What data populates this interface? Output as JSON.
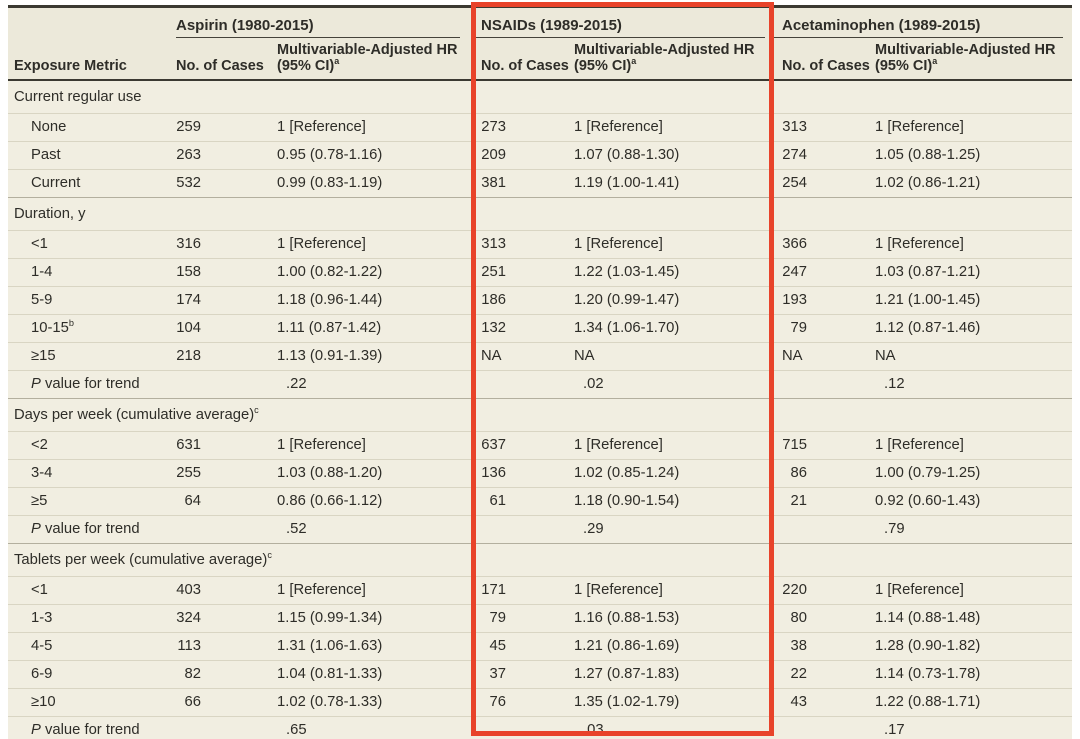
{
  "annotation": {
    "type": "highlight-box",
    "target": "NSAIDs column group",
    "color": "#e8432a"
  },
  "table": {
    "groups": [
      {
        "label": "Aspirin (1980-2015)"
      },
      {
        "label": "NSAIDs (1989-2015)"
      },
      {
        "label": "Acetaminophen (1989-2015)"
      }
    ],
    "col_headers": {
      "metric": "Exposure Metric",
      "cases": "No. of Cases",
      "hr_line1": "Multivariable-Adjusted HR",
      "hr_line2": "(95% CI)^a"
    },
    "p_label": {
      "italic": "P",
      "rest": " value for trend"
    },
    "sections": [
      {
        "label": "Current regular use",
        "rows": [
          {
            "metric": "None",
            "aspirin": {
              "cases": "259",
              "hr": "1 [Reference]"
            },
            "nsaids": {
              "cases": "273",
              "hr": "1 [Reference]"
            },
            "acetaminophen": {
              "cases": "313",
              "hr": "1 [Reference]"
            }
          },
          {
            "metric": "Past",
            "aspirin": {
              "cases": "263",
              "hr": "0.95 (0.78-1.16)"
            },
            "nsaids": {
              "cases": "209",
              "hr": "1.07 (0.88-1.30)"
            },
            "acetaminophen": {
              "cases": "274",
              "hr": "1.05 (0.88-1.25)"
            }
          },
          {
            "metric": "Current",
            "aspirin": {
              "cases": "532",
              "hr": "0.99 (0.83-1.19)"
            },
            "nsaids": {
              "cases": "381",
              "hr": "1.19 (1.00-1.41)"
            },
            "acetaminophen": {
              "cases": "254",
              "hr": "1.02 (0.86-1.21)"
            }
          }
        ],
        "p_trend": null
      },
      {
        "label": "Duration, y",
        "rows": [
          {
            "metric": "<1",
            "aspirin": {
              "cases": "316",
              "hr": "1 [Reference]"
            },
            "nsaids": {
              "cases": "313",
              "hr": "1 [Reference]"
            },
            "acetaminophen": {
              "cases": "366",
              "hr": "1 [Reference]"
            }
          },
          {
            "metric": "1-4",
            "aspirin": {
              "cases": "158",
              "hr": "1.00 (0.82-1.22)"
            },
            "nsaids": {
              "cases": "251",
              "hr": "1.22 (1.03-1.45)"
            },
            "acetaminophen": {
              "cases": "247",
              "hr": "1.03 (0.87-1.21)"
            }
          },
          {
            "metric": "5-9",
            "aspirin": {
              "cases": "174",
              "hr": "1.18 (0.96-1.44)"
            },
            "nsaids": {
              "cases": "186",
              "hr": "1.20 (0.99-1.47)"
            },
            "acetaminophen": {
              "cases": "193",
              "hr": "1.21 (1.00-1.45)"
            }
          },
          {
            "metric": "10-15^b",
            "aspirin": {
              "cases": "104",
              "hr": "1.11 (0.87-1.42)"
            },
            "nsaids": {
              "cases": "132",
              "hr": "1.34 (1.06-1.70)"
            },
            "acetaminophen": {
              "cases": "79",
              "hr": "1.12 (0.87-1.46)"
            }
          },
          {
            "metric": "≥15",
            "aspirin": {
              "cases": "218",
              "hr": "1.13 (0.91-1.39)"
            },
            "nsaids": {
              "cases": "NA",
              "hr": "NA"
            },
            "acetaminophen": {
              "cases": "NA",
              "hr": "NA"
            }
          }
        ],
        "p_trend": {
          "aspirin": ".22",
          "nsaids": ".02",
          "acetaminophen": ".12"
        }
      },
      {
        "label": "Days per week (cumulative average)^c",
        "rows": [
          {
            "metric": "<2",
            "aspirin": {
              "cases": "631",
              "hr": "1 [Reference]"
            },
            "nsaids": {
              "cases": "637",
              "hr": "1 [Reference]"
            },
            "acetaminophen": {
              "cases": "715",
              "hr": "1 [Reference]"
            }
          },
          {
            "metric": "3-4",
            "aspirin": {
              "cases": "255",
              "hr": "1.03 (0.88-1.20)"
            },
            "nsaids": {
              "cases": "136",
              "hr": "1.02 (0.85-1.24)"
            },
            "acetaminophen": {
              "cases": "86",
              "hr": "1.00 (0.79-1.25)"
            }
          },
          {
            "metric": "≥5",
            "aspirin": {
              "cases": "64",
              "hr": "0.86 (0.66-1.12)"
            },
            "nsaids": {
              "cases": "61",
              "hr": "1.18 (0.90-1.54)"
            },
            "acetaminophen": {
              "cases": "21",
              "hr": "0.92 (0.60-1.43)"
            }
          }
        ],
        "p_trend": {
          "aspirin": ".52",
          "nsaids": ".29",
          "acetaminophen": ".79"
        }
      },
      {
        "label": "Tablets per week (cumulative average)^c",
        "rows": [
          {
            "metric": "<1",
            "aspirin": {
              "cases": "403",
              "hr": "1 [Reference]"
            },
            "nsaids": {
              "cases": "171",
              "hr": "1 [Reference]"
            },
            "acetaminophen": {
              "cases": "220",
              "hr": "1 [Reference]"
            }
          },
          {
            "metric": "1-3",
            "aspirin": {
              "cases": "324",
              "hr": "1.15 (0.99-1.34)"
            },
            "nsaids": {
              "cases": "79",
              "hr": "1.16 (0.88-1.53)"
            },
            "acetaminophen": {
              "cases": "80",
              "hr": "1.14 (0.88-1.48)"
            }
          },
          {
            "metric": "4-5",
            "aspirin": {
              "cases": "113",
              "hr": "1.31 (1.06-1.63)"
            },
            "nsaids": {
              "cases": "45",
              "hr": "1.21 (0.86-1.69)"
            },
            "acetaminophen": {
              "cases": "38",
              "hr": "1.28 (0.90-1.82)"
            }
          },
          {
            "metric": "6-9",
            "aspirin": {
              "cases": "82",
              "hr": "1.04 (0.81-1.33)"
            },
            "nsaids": {
              "cases": "37",
              "hr": "1.27 (0.87-1.83)"
            },
            "acetaminophen": {
              "cases": "22",
              "hr": "1.14 (0.73-1.78)"
            }
          },
          {
            "metric": "≥10",
            "aspirin": {
              "cases": "66",
              "hr": "1.02 (0.78-1.33)"
            },
            "nsaids": {
              "cases": "76",
              "hr": "1.35 (1.02-1.79)"
            },
            "acetaminophen": {
              "cases": "43",
              "hr": "1.22 (0.88-1.71)"
            }
          }
        ],
        "p_trend": {
          "aspirin": ".65",
          "nsaids": ".03",
          "acetaminophen": ".17"
        }
      }
    ]
  }
}
